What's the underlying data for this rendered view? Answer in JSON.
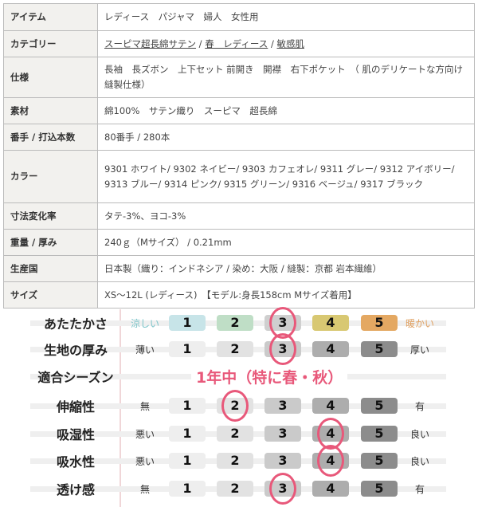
{
  "spec_table": [
    {
      "label": "アイテム",
      "value": "レディース　パジャマ　婦人　女性用"
    },
    {
      "label": "カテゴリー",
      "links": [
        "スーピマ超長綿サテン",
        "春　レディース",
        "敏感肌"
      ]
    },
    {
      "label": "仕様",
      "value": "長袖　長ズボン　上下セット 前開き　開襟　右下ポケット　（ 肌のデリケートな方向け縫製仕様）"
    },
    {
      "label": "素材",
      "value": "綿100%　サテン織り　スーピマ　超長綿"
    },
    {
      "label": "番手 / 打込本数",
      "value": "80番手 / 280本"
    },
    {
      "label": "カラー",
      "value": "9301 ホワイト/ 9302 ネイビー/ 9303 カフェオレ/ 9311 グレー/ 9312 アイボリー/ 9313 ブルー/ 9314 ピンク/ 9315 グリーン/ 9316 ベージュ/ 9317 ブラック"
    },
    {
      "label": "寸法変化率",
      "value": "タテ-3%、ヨコ-3%"
    },
    {
      "label": "重量 / 厚み",
      "value": "240ｇ（Mサイズ） / 0.21mm"
    },
    {
      "label": "生産国",
      "value": "日本製（織り：インドネシア / 染め：大阪 / 縫製：京都 岩本繊維）"
    },
    {
      "label": "サイズ",
      "value": "XS～12L (レディース)　【モデル:身長158cm Mサイズ着用】"
    }
  ],
  "ratings": [
    {
      "label": "あたたかさ",
      "low": "涼しい",
      "high": "暖かい",
      "selected": 3,
      "low_color": "#7cc4c9",
      "high_color": "#e0a060",
      "colors": [
        "#c7e4e8",
        "#bfdec6",
        "#cfcfcf",
        "#d8c872",
        "#e4a862"
      ]
    },
    {
      "label": "生地の厚み",
      "low": "薄い",
      "high": "厚い",
      "selected": 3
    },
    {
      "label": "適合シーズン",
      "season": "1年中（特に春・秋）"
    },
    {
      "label": "伸縮性",
      "low": "無",
      "high": "有",
      "selected": 2
    },
    {
      "label": "吸湿性",
      "low": "悪い",
      "high": "良い",
      "selected": 4
    },
    {
      "label": "吸水性",
      "low": "悪い",
      "high": "良い",
      "selected": 4
    },
    {
      "label": "透け感",
      "low": "無",
      "high": "有",
      "selected": 3
    }
  ],
  "scale": [
    "1",
    "2",
    "3",
    "4",
    "5"
  ],
  "gray_colors": [
    "#eeeeee",
    "#e2e2e2",
    "#cacaca",
    "#adadad",
    "#8c8c8c"
  ],
  "highlight_color": "#e8587a"
}
